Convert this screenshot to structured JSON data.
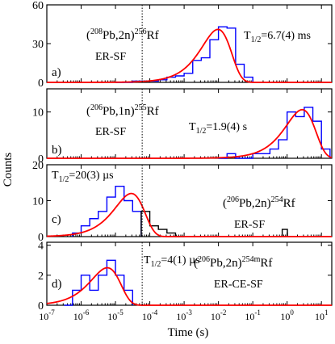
{
  "chart_data": {
    "type": "histogram",
    "ylabel": "Counts",
    "xlabel": "Time (s)",
    "x_scale": "log",
    "xlim": [
      1e-07,
      20
    ],
    "x_ticks": [
      {
        "v": 1e-07,
        "base": "10",
        "exp": "-7"
      },
      {
        "v": 1e-06,
        "base": "10",
        "exp": "-6"
      },
      {
        "v": 1e-05,
        "base": "10",
        "exp": "-5"
      },
      {
        "v": 0.0001,
        "base": "10",
        "exp": "-4"
      },
      {
        "v": 0.001,
        "base": "10",
        "exp": "-3"
      },
      {
        "v": 0.01,
        "base": "10",
        "exp": "-2"
      },
      {
        "v": 0.1,
        "base": "10",
        "exp": "-1"
      },
      {
        "v": 1,
        "base": "10",
        "exp": "0"
      },
      {
        "v": 10,
        "base": "10",
        "exp": "1"
      }
    ],
    "marker_time": 6e-05,
    "panels": [
      {
        "tag": "a)",
        "ylim": [
          0,
          60
        ],
        "yticks": [
          0,
          30,
          60
        ],
        "reaction": "(208Pb,2n)256Rf",
        "mode": "ER-SF",
        "halflife": "T1/2=6.7(4) ms",
        "r_a": "208",
        "r_b": "Pb,2n)",
        "r_c": "256",
        "r_d": "Rf",
        "hl_main": "=6.7(4) ms",
        "edges": [
          1e-05,
          1.78e-05,
          3.16e-05,
          5.62e-05,
          0.0001,
          0.000178,
          0.000316,
          0.000562,
          0.001,
          0.00178,
          0.00316,
          0.00562,
          0.01,
          0.0178,
          0.0316,
          0.0562,
          0.1
        ],
        "counts": [
          0,
          0,
          1,
          1,
          1,
          2,
          4,
          5,
          7,
          17,
          19,
          33,
          43,
          42,
          14,
          4
        ],
        "fit_halflife": 0.0067,
        "fit_peak": 41
      },
      {
        "tag": "b)",
        "ylim": [
          0,
          15
        ],
        "yticks": [
          0,
          10
        ],
        "reaction": "(206Pb,1n)255Rf",
        "mode": "ER-SF",
        "halflife": "T1/2=1.9(4) s",
        "r_a": "206",
        "r_b": "Pb,1n)",
        "r_c": "255",
        "r_d": "Rf",
        "hl_main": "=1.9(4) s",
        "edges": [
          0.01,
          0.0178,
          0.0316,
          0.0562,
          0.1,
          0.178,
          0.316,
          0.562,
          1,
          1.78,
          3.16,
          5.62,
          10,
          17.8
        ],
        "counts": [
          0,
          1,
          0,
          0,
          1,
          1,
          2,
          4,
          10,
          9,
          11,
          8,
          2
        ],
        "fit_halflife": 1.9,
        "fit_peak": 10.5
      },
      {
        "tag": "c)",
        "ylim": [
          0,
          20
        ],
        "yticks": [
          0,
          10,
          20
        ],
        "reaction": "(206Pb,2n)254Rf",
        "mode": "ER-SF",
        "halflife": "T1/2=20(3) µs",
        "r_a": "206",
        "r_b": "Pb,2n)",
        "r_c": "254",
        "r_d": "Rf",
        "hl_main": "=20(3) µs",
        "edges": [
          5.6e-07,
          1e-06,
          1.78e-06,
          3.16e-06,
          5.62e-06,
          1e-05,
          1.78e-05,
          3.16e-05,
          5.62e-05
        ],
        "counts": [
          1,
          3,
          5,
          7,
          11,
          14,
          10,
          7
        ],
        "black_edges": [
          5.62e-05,
          0.0001,
          0.000178,
          0.000316,
          0.000562,
          0.001
        ],
        "black_counts": [
          7,
          3,
          2,
          1,
          0
        ],
        "black_extra": [
          {
            "x0": 0.72,
            "x1": 1.02,
            "c": 2
          }
        ],
        "fit_halflife": 2e-05,
        "fit_peak": 12
      },
      {
        "tag": "d)",
        "ylim": [
          0,
          4.2
        ],
        "yticks": [
          0,
          2,
          4
        ],
        "reaction": "(206Pb,2n)254mRf",
        "mode": "ER-CE-SF",
        "halflife": "T1/2=4(1) µs",
        "r_a": "206",
        "r_b": "Pb,2n)",
        "r_c": "254m",
        "r_d": "Rf",
        "hl_main": "=4(1) µs",
        "edges": [
          3.2e-07,
          5.6e-07,
          1e-06,
          1.78e-06,
          3.16e-06,
          5.62e-06,
          1e-05,
          1.78e-05,
          3.16e-05
        ],
        "counts": [
          0,
          1,
          2,
          1,
          2,
          3,
          2,
          1
        ],
        "fit_halflife": 4e-06,
        "fit_peak": 2.5
      }
    ]
  }
}
